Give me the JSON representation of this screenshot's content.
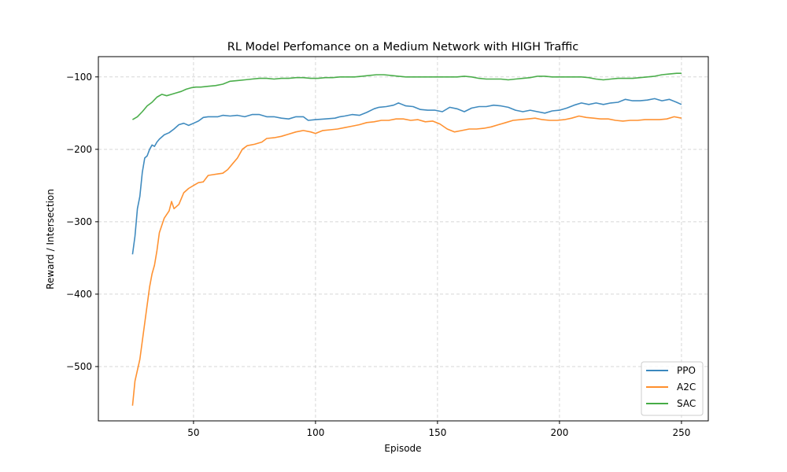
{
  "chart_data": {
    "type": "line",
    "title": "RL Model Perfomance on a Medium Network with HIGH Traffic",
    "xlabel": "Episode",
    "ylabel": "Reward / Intersection",
    "xlim": [
      11,
      261
    ],
    "ylim": [
      -575,
      -72
    ],
    "xticks": [
      50,
      100,
      150,
      200,
      250
    ],
    "yticks": [
      -500,
      -400,
      -300,
      -200,
      -100
    ],
    "grid": true,
    "legend_position": "lower right",
    "series": [
      {
        "name": "PPO",
        "color": "#1f77b4",
        "points": [
          [
            25,
            -345
          ],
          [
            26,
            -320
          ],
          [
            27,
            -282
          ],
          [
            28,
            -265
          ],
          [
            29,
            -232
          ],
          [
            30,
            -212
          ],
          [
            31,
            -209
          ],
          [
            32,
            -200
          ],
          [
            33,
            -194
          ],
          [
            34,
            -196
          ],
          [
            35,
            -190
          ],
          [
            36,
            -186
          ],
          [
            38,
            -180
          ],
          [
            40,
            -177
          ],
          [
            42,
            -172
          ],
          [
            44,
            -166
          ],
          [
            46,
            -164
          ],
          [
            48,
            -167
          ],
          [
            50,
            -164
          ],
          [
            52,
            -161
          ],
          [
            54,
            -156
          ],
          [
            56,
            -155
          ],
          [
            60,
            -155
          ],
          [
            62,
            -153
          ],
          [
            65,
            -154
          ],
          [
            68,
            -153
          ],
          [
            71,
            -155
          ],
          [
            74,
            -152
          ],
          [
            77,
            -152
          ],
          [
            80,
            -155
          ],
          [
            83,
            -155
          ],
          [
            86,
            -157
          ],
          [
            89,
            -158
          ],
          [
            92,
            -155
          ],
          [
            95,
            -155
          ],
          [
            97,
            -160
          ],
          [
            100,
            -159
          ],
          [
            104,
            -158
          ],
          [
            108,
            -157
          ],
          [
            110,
            -155
          ],
          [
            112,
            -154
          ],
          [
            115,
            -152
          ],
          [
            118,
            -153
          ],
          [
            121,
            -149
          ],
          [
            124,
            -144
          ],
          [
            126,
            -142
          ],
          [
            129,
            -141
          ],
          [
            132,
            -139
          ],
          [
            134,
            -136
          ],
          [
            137,
            -140
          ],
          [
            140,
            -141
          ],
          [
            143,
            -145
          ],
          [
            146,
            -146
          ],
          [
            149,
            -146
          ],
          [
            152,
            -148
          ],
          [
            155,
            -142
          ],
          [
            158,
            -144
          ],
          [
            161,
            -148
          ],
          [
            164,
            -143
          ],
          [
            167,
            -141
          ],
          [
            170,
            -141
          ],
          [
            173,
            -139
          ],
          [
            176,
            -140
          ],
          [
            179,
            -142
          ],
          [
            182,
            -146
          ],
          [
            185,
            -148
          ],
          [
            188,
            -146
          ],
          [
            191,
            -148
          ],
          [
            194,
            -150
          ],
          [
            197,
            -147
          ],
          [
            200,
            -146
          ],
          [
            203,
            -143
          ],
          [
            206,
            -139
          ],
          [
            209,
            -136
          ],
          [
            212,
            -138
          ],
          [
            215,
            -136
          ],
          [
            218,
            -138
          ],
          [
            221,
            -136
          ],
          [
            224,
            -135
          ],
          [
            227,
            -131
          ],
          [
            230,
            -133
          ],
          [
            233,
            -133
          ],
          [
            236,
            -132
          ],
          [
            239,
            -130
          ],
          [
            242,
            -133
          ],
          [
            245,
            -131
          ],
          [
            248,
            -135
          ],
          [
            250,
            -138
          ]
        ]
      },
      {
        "name": "A2C",
        "color": "#ff7f0e",
        "points": [
          [
            25,
            -554
          ],
          [
            26,
            -520
          ],
          [
            28,
            -490
          ],
          [
            30,
            -440
          ],
          [
            32,
            -390
          ],
          [
            33,
            -372
          ],
          [
            34,
            -360
          ],
          [
            35,
            -340
          ],
          [
            36,
            -315
          ],
          [
            38,
            -295
          ],
          [
            40,
            -285
          ],
          [
            41,
            -272
          ],
          [
            42,
            -282
          ],
          [
            44,
            -276
          ],
          [
            46,
            -260
          ],
          [
            48,
            -254
          ],
          [
            50,
            -250
          ],
          [
            52,
            -246
          ],
          [
            54,
            -245
          ],
          [
            56,
            -236
          ],
          [
            58,
            -235
          ],
          [
            60,
            -234
          ],
          [
            62,
            -233
          ],
          [
            64,
            -228
          ],
          [
            66,
            -220
          ],
          [
            68,
            -212
          ],
          [
            70,
            -200
          ],
          [
            72,
            -195
          ],
          [
            75,
            -193
          ],
          [
            78,
            -190
          ],
          [
            80,
            -185
          ],
          [
            83,
            -184
          ],
          [
            86,
            -182
          ],
          [
            89,
            -179
          ],
          [
            92,
            -176
          ],
          [
            95,
            -174
          ],
          [
            98,
            -176
          ],
          [
            100,
            -178
          ],
          [
            103,
            -174
          ],
          [
            106,
            -173
          ],
          [
            109,
            -172
          ],
          [
            112,
            -170
          ],
          [
            115,
            -168
          ],
          [
            118,
            -166
          ],
          [
            121,
            -163
          ],
          [
            124,
            -162
          ],
          [
            127,
            -160
          ],
          [
            130,
            -160
          ],
          [
            133,
            -158
          ],
          [
            136,
            -158
          ],
          [
            139,
            -160
          ],
          [
            142,
            -159
          ],
          [
            145,
            -162
          ],
          [
            148,
            -161
          ],
          [
            151,
            -165
          ],
          [
            154,
            -172
          ],
          [
            157,
            -176
          ],
          [
            160,
            -174
          ],
          [
            163,
            -172
          ],
          [
            166,
            -172
          ],
          [
            169,
            -171
          ],
          [
            172,
            -169
          ],
          [
            175,
            -166
          ],
          [
            178,
            -163
          ],
          [
            181,
            -160
          ],
          [
            184,
            -159
          ],
          [
            187,
            -158
          ],
          [
            190,
            -157
          ],
          [
            193,
            -159
          ],
          [
            196,
            -160
          ],
          [
            199,
            -160
          ],
          [
            202,
            -159
          ],
          [
            205,
            -157
          ],
          [
            208,
            -154
          ],
          [
            211,
            -156
          ],
          [
            214,
            -157
          ],
          [
            217,
            -158
          ],
          [
            220,
            -158
          ],
          [
            223,
            -160
          ],
          [
            226,
            -161
          ],
          [
            229,
            -160
          ],
          [
            232,
            -160
          ],
          [
            235,
            -159
          ],
          [
            238,
            -159
          ],
          [
            241,
            -159
          ],
          [
            244,
            -158
          ],
          [
            247,
            -155
          ],
          [
            250,
            -157
          ]
        ]
      },
      {
        "name": "SAC",
        "color": "#2ca02c",
        "points": [
          [
            25,
            -159
          ],
          [
            27,
            -155
          ],
          [
            29,
            -148
          ],
          [
            31,
            -140
          ],
          [
            33,
            -135
          ],
          [
            35,
            -128
          ],
          [
            37,
            -124
          ],
          [
            39,
            -126
          ],
          [
            41,
            -124
          ],
          [
            43,
            -122
          ],
          [
            45,
            -120
          ],
          [
            47,
            -117
          ],
          [
            49,
            -115
          ],
          [
            51,
            -114
          ],
          [
            53,
            -114
          ],
          [
            56,
            -113
          ],
          [
            59,
            -112
          ],
          [
            62,
            -110
          ],
          [
            65,
            -106
          ],
          [
            68,
            -105
          ],
          [
            71,
            -104
          ],
          [
            74,
            -103
          ],
          [
            77,
            -102
          ],
          [
            80,
            -102
          ],
          [
            83,
            -103
          ],
          [
            86,
            -102
          ],
          [
            89,
            -102
          ],
          [
            92,
            -101
          ],
          [
            95,
            -101
          ],
          [
            98,
            -102
          ],
          [
            101,
            -102
          ],
          [
            104,
            -101
          ],
          [
            107,
            -101
          ],
          [
            110,
            -100
          ],
          [
            113,
            -100
          ],
          [
            116,
            -100
          ],
          [
            119,
            -99
          ],
          [
            122,
            -98
          ],
          [
            125,
            -97
          ],
          [
            128,
            -97
          ],
          [
            131,
            -98
          ],
          [
            134,
            -99
          ],
          [
            137,
            -100
          ],
          [
            140,
            -100
          ],
          [
            143,
            -100
          ],
          [
            146,
            -100
          ],
          [
            149,
            -100
          ],
          [
            152,
            -100
          ],
          [
            155,
            -100
          ],
          [
            158,
            -100
          ],
          [
            161,
            -99
          ],
          [
            164,
            -100
          ],
          [
            167,
            -102
          ],
          [
            170,
            -103
          ],
          [
            173,
            -103
          ],
          [
            176,
            -103
          ],
          [
            179,
            -104
          ],
          [
            182,
            -103
          ],
          [
            185,
            -102
          ],
          [
            188,
            -101
          ],
          [
            191,
            -99
          ],
          [
            194,
            -99
          ],
          [
            197,
            -100
          ],
          [
            200,
            -100
          ],
          [
            203,
            -100
          ],
          [
            206,
            -100
          ],
          [
            209,
            -100
          ],
          [
            212,
            -101
          ],
          [
            215,
            -103
          ],
          [
            218,
            -104
          ],
          [
            221,
            -103
          ],
          [
            224,
            -102
          ],
          [
            227,
            -102
          ],
          [
            230,
            -102
          ],
          [
            233,
            -101
          ],
          [
            236,
            -100
          ],
          [
            239,
            -99
          ],
          [
            242,
            -97
          ],
          [
            245,
            -96
          ],
          [
            248,
            -95
          ],
          [
            250,
            -95
          ]
        ]
      }
    ]
  }
}
